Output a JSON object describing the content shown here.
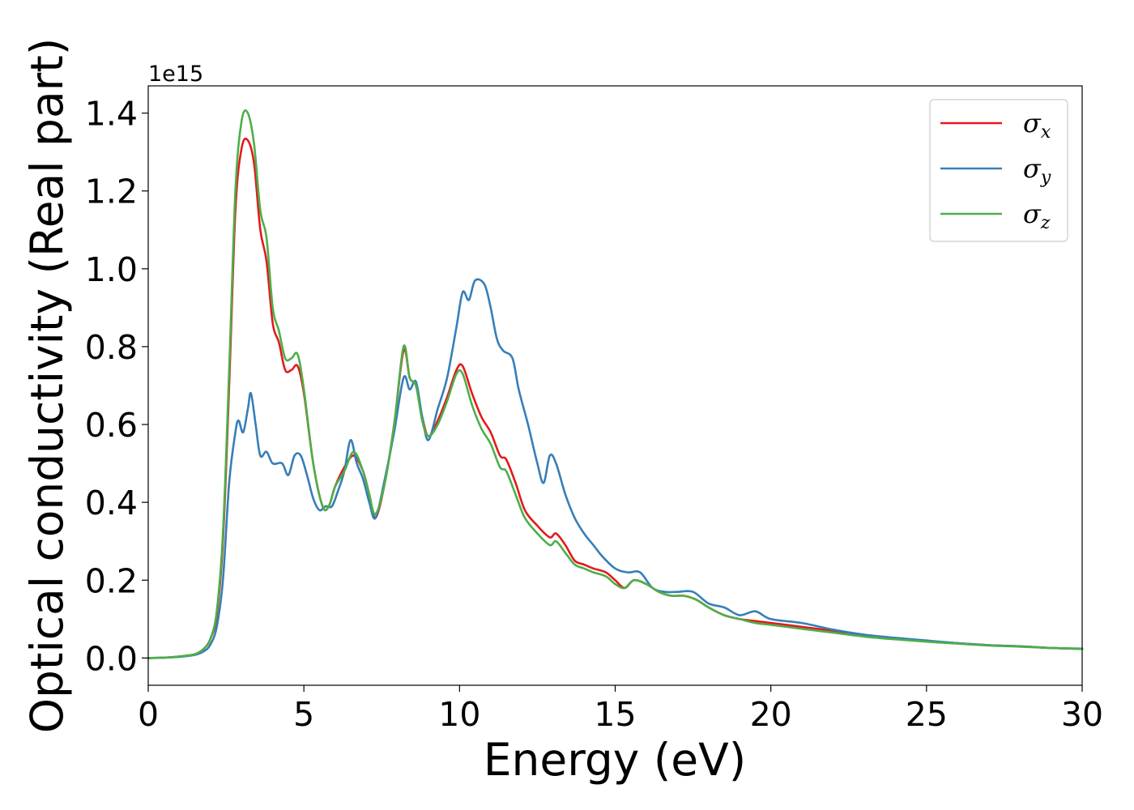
{
  "chart_data": {
    "type": "line",
    "title": "",
    "xlabel": "Energy (eV)",
    "ylabel": "Optical conductivity (Real part)",
    "y_offset_label": "1e15",
    "xlim": [
      0,
      30
    ],
    "ylim": [
      -0.07,
      1.47
    ],
    "xticks": [
      0,
      5,
      10,
      15,
      20,
      25,
      30
    ],
    "xtick_labels": [
      "0",
      "5",
      "10",
      "15",
      "20",
      "25",
      "30"
    ],
    "yticks": [
      0.0,
      0.2,
      0.4,
      0.6,
      0.8,
      1.0,
      1.2,
      1.4
    ],
    "ytick_labels": [
      "0.0",
      "0.2",
      "0.4",
      "0.6",
      "0.8",
      "1.0",
      "1.2",
      "1.4"
    ],
    "grid": false,
    "legend_position": "top-right",
    "series": [
      {
        "name": "σx",
        "symbol": "σ",
        "subscript": "x",
        "color": "#e41a1c",
        "points": [
          [
            0,
            0
          ],
          [
            0.5,
            0.001
          ],
          [
            1,
            0.004
          ],
          [
            1.5,
            0.01
          ],
          [
            1.8,
            0.025
          ],
          [
            2.0,
            0.05
          ],
          [
            2.2,
            0.11
          ],
          [
            2.4,
            0.3
          ],
          [
            2.6,
            0.7
          ],
          [
            2.8,
            1.15
          ],
          [
            3.0,
            1.31
          ],
          [
            3.2,
            1.33
          ],
          [
            3.4,
            1.27
          ],
          [
            3.6,
            1.1
          ],
          [
            3.8,
            1.02
          ],
          [
            4.0,
            0.86
          ],
          [
            4.2,
            0.81
          ],
          [
            4.4,
            0.74
          ],
          [
            4.6,
            0.74
          ],
          [
            4.8,
            0.75
          ],
          [
            5.0,
            0.68
          ],
          [
            5.3,
            0.5
          ],
          [
            5.6,
            0.39
          ],
          [
            5.8,
            0.39
          ],
          [
            6.0,
            0.44
          ],
          [
            6.3,
            0.49
          ],
          [
            6.6,
            0.52
          ],
          [
            6.9,
            0.48
          ],
          [
            7.1,
            0.42
          ],
          [
            7.3,
            0.36
          ],
          [
            7.6,
            0.45
          ],
          [
            7.9,
            0.6
          ],
          [
            8.2,
            0.79
          ],
          [
            8.4,
            0.72
          ],
          [
            8.6,
            0.7
          ],
          [
            8.8,
            0.62
          ],
          [
            9.0,
            0.57
          ],
          [
            9.3,
            0.61
          ],
          [
            9.6,
            0.67
          ],
          [
            9.9,
            0.74
          ],
          [
            10.1,
            0.75
          ],
          [
            10.4,
            0.68
          ],
          [
            10.7,
            0.62
          ],
          [
            11.0,
            0.58
          ],
          [
            11.3,
            0.52
          ],
          [
            11.5,
            0.51
          ],
          [
            11.8,
            0.45
          ],
          [
            12.1,
            0.38
          ],
          [
            12.5,
            0.34
          ],
          [
            12.9,
            0.31
          ],
          [
            13.1,
            0.32
          ],
          [
            13.4,
            0.29
          ],
          [
            13.7,
            0.25
          ],
          [
            14.0,
            0.24
          ],
          [
            14.3,
            0.23
          ],
          [
            14.7,
            0.22
          ],
          [
            15.0,
            0.2
          ],
          [
            15.3,
            0.18
          ],
          [
            15.6,
            0.2
          ],
          [
            16.0,
            0.19
          ],
          [
            16.4,
            0.17
          ],
          [
            16.8,
            0.16
          ],
          [
            17.2,
            0.16
          ],
          [
            17.6,
            0.15
          ],
          [
            18.0,
            0.13
          ],
          [
            18.5,
            0.11
          ],
          [
            19.0,
            0.1
          ],
          [
            19.5,
            0.095
          ],
          [
            20,
            0.09
          ],
          [
            21,
            0.08
          ],
          [
            22,
            0.07
          ],
          [
            23,
            0.058
          ],
          [
            24,
            0.05
          ],
          [
            25,
            0.044
          ],
          [
            26,
            0.038
          ],
          [
            27,
            0.033
          ],
          [
            28,
            0.03
          ],
          [
            29,
            0.026
          ],
          [
            30,
            0.024
          ]
        ]
      },
      {
        "name": "σy",
        "symbol": "σ",
        "subscript": "y",
        "color": "#377eb8",
        "points": [
          [
            0,
            0
          ],
          [
            0.5,
            0.001
          ],
          [
            1,
            0.003
          ],
          [
            1.5,
            0.008
          ],
          [
            1.8,
            0.018
          ],
          [
            2.0,
            0.035
          ],
          [
            2.2,
            0.08
          ],
          [
            2.4,
            0.2
          ],
          [
            2.6,
            0.45
          ],
          [
            2.8,
            0.58
          ],
          [
            2.9,
            0.61
          ],
          [
            3.05,
            0.58
          ],
          [
            3.2,
            0.64
          ],
          [
            3.3,
            0.68
          ],
          [
            3.45,
            0.6
          ],
          [
            3.6,
            0.52
          ],
          [
            3.8,
            0.53
          ],
          [
            4.0,
            0.5
          ],
          [
            4.3,
            0.5
          ],
          [
            4.5,
            0.47
          ],
          [
            4.7,
            0.52
          ],
          [
            4.9,
            0.52
          ],
          [
            5.1,
            0.47
          ],
          [
            5.3,
            0.41
          ],
          [
            5.5,
            0.38
          ],
          [
            5.7,
            0.39
          ],
          [
            5.9,
            0.39
          ],
          [
            6.1,
            0.43
          ],
          [
            6.3,
            0.48
          ],
          [
            6.5,
            0.56
          ],
          [
            6.7,
            0.5
          ],
          [
            6.9,
            0.46
          ],
          [
            7.1,
            0.4
          ],
          [
            7.3,
            0.36
          ],
          [
            7.6,
            0.46
          ],
          [
            7.9,
            0.58
          ],
          [
            8.2,
            0.72
          ],
          [
            8.4,
            0.69
          ],
          [
            8.6,
            0.71
          ],
          [
            8.8,
            0.62
          ],
          [
            9.0,
            0.56
          ],
          [
            9.3,
            0.64
          ],
          [
            9.6,
            0.72
          ],
          [
            9.9,
            0.85
          ],
          [
            10.1,
            0.94
          ],
          [
            10.3,
            0.92
          ],
          [
            10.5,
            0.97
          ],
          [
            10.8,
            0.96
          ],
          [
            11.0,
            0.9
          ],
          [
            11.2,
            0.82
          ],
          [
            11.4,
            0.79
          ],
          [
            11.7,
            0.77
          ],
          [
            11.9,
            0.69
          ],
          [
            12.2,
            0.6
          ],
          [
            12.5,
            0.5
          ],
          [
            12.7,
            0.45
          ],
          [
            12.9,
            0.52
          ],
          [
            13.1,
            0.5
          ],
          [
            13.4,
            0.42
          ],
          [
            13.7,
            0.36
          ],
          [
            14.0,
            0.32
          ],
          [
            14.3,
            0.29
          ],
          [
            14.6,
            0.26
          ],
          [
            15.0,
            0.23
          ],
          [
            15.4,
            0.22
          ],
          [
            15.8,
            0.22
          ],
          [
            16.2,
            0.18
          ],
          [
            16.6,
            0.17
          ],
          [
            17.0,
            0.17
          ],
          [
            17.5,
            0.17
          ],
          [
            18.0,
            0.14
          ],
          [
            18.5,
            0.13
          ],
          [
            19.0,
            0.11
          ],
          [
            19.5,
            0.12
          ],
          [
            20,
            0.1
          ],
          [
            21,
            0.09
          ],
          [
            22,
            0.073
          ],
          [
            23,
            0.06
          ],
          [
            24,
            0.052
          ],
          [
            25,
            0.045
          ],
          [
            26,
            0.038
          ],
          [
            27,
            0.033
          ],
          [
            28,
            0.03
          ],
          [
            29,
            0.026
          ],
          [
            30,
            0.024
          ]
        ]
      },
      {
        "name": "σz",
        "symbol": "σ",
        "subscript": "z",
        "color": "#4daf4a",
        "points": [
          [
            0,
            0
          ],
          [
            0.5,
            0.001
          ],
          [
            1,
            0.004
          ],
          [
            1.5,
            0.01
          ],
          [
            1.8,
            0.025
          ],
          [
            2.0,
            0.05
          ],
          [
            2.2,
            0.12
          ],
          [
            2.4,
            0.32
          ],
          [
            2.6,
            0.74
          ],
          [
            2.8,
            1.2
          ],
          [
            3.0,
            1.38
          ],
          [
            3.2,
            1.4
          ],
          [
            3.4,
            1.32
          ],
          [
            3.6,
            1.15
          ],
          [
            3.8,
            1.08
          ],
          [
            4.0,
            0.9
          ],
          [
            4.2,
            0.84
          ],
          [
            4.4,
            0.77
          ],
          [
            4.6,
            0.77
          ],
          [
            4.8,
            0.78
          ],
          [
            5.0,
            0.69
          ],
          [
            5.3,
            0.5
          ],
          [
            5.6,
            0.39
          ],
          [
            5.8,
            0.39
          ],
          [
            6.0,
            0.44
          ],
          [
            6.3,
            0.48
          ],
          [
            6.6,
            0.53
          ],
          [
            6.9,
            0.48
          ],
          [
            7.1,
            0.42
          ],
          [
            7.3,
            0.37
          ],
          [
            7.6,
            0.45
          ],
          [
            7.9,
            0.6
          ],
          [
            8.2,
            0.8
          ],
          [
            8.4,
            0.72
          ],
          [
            8.6,
            0.7
          ],
          [
            8.8,
            0.61
          ],
          [
            9.0,
            0.57
          ],
          [
            9.3,
            0.6
          ],
          [
            9.6,
            0.66
          ],
          [
            9.9,
            0.73
          ],
          [
            10.1,
            0.73
          ],
          [
            10.4,
            0.65
          ],
          [
            10.7,
            0.59
          ],
          [
            11.0,
            0.55
          ],
          [
            11.3,
            0.49
          ],
          [
            11.5,
            0.48
          ],
          [
            11.8,
            0.42
          ],
          [
            12.1,
            0.36
          ],
          [
            12.5,
            0.32
          ],
          [
            12.9,
            0.29
          ],
          [
            13.1,
            0.3
          ],
          [
            13.4,
            0.27
          ],
          [
            13.7,
            0.24
          ],
          [
            14.0,
            0.23
          ],
          [
            14.3,
            0.22
          ],
          [
            14.7,
            0.21
          ],
          [
            15.0,
            0.19
          ],
          [
            15.3,
            0.18
          ],
          [
            15.6,
            0.2
          ],
          [
            16.0,
            0.19
          ],
          [
            16.4,
            0.17
          ],
          [
            16.8,
            0.16
          ],
          [
            17.2,
            0.16
          ],
          [
            17.6,
            0.15
          ],
          [
            18.0,
            0.13
          ],
          [
            18.5,
            0.11
          ],
          [
            19.0,
            0.1
          ],
          [
            19.5,
            0.09
          ],
          [
            20,
            0.085
          ],
          [
            21,
            0.075
          ],
          [
            22,
            0.065
          ],
          [
            23,
            0.055
          ],
          [
            24,
            0.048
          ],
          [
            25,
            0.042
          ],
          [
            26,
            0.037
          ],
          [
            27,
            0.032
          ],
          [
            28,
            0.029
          ],
          [
            29,
            0.026
          ],
          [
            30,
            0.023
          ]
        ]
      }
    ]
  }
}
